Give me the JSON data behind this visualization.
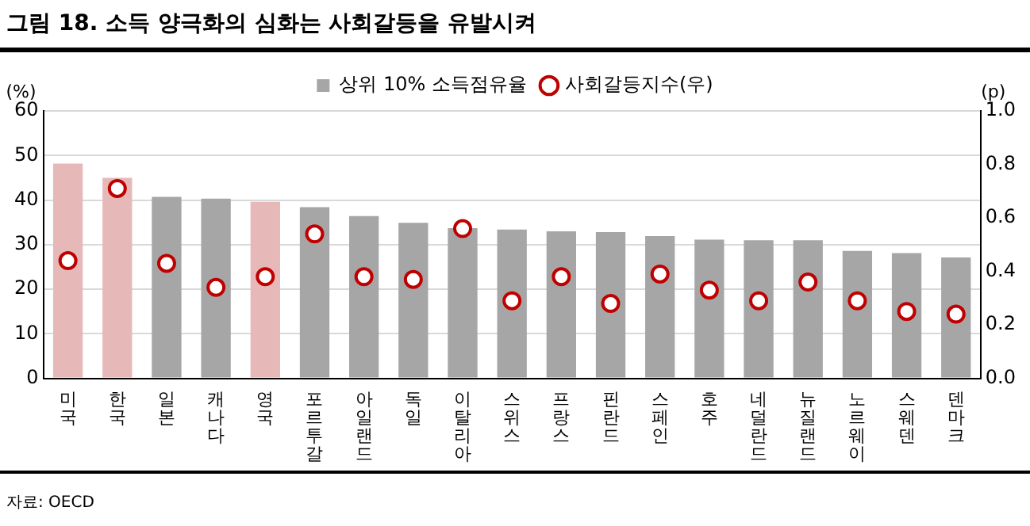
{
  "chart_data": {
    "type": "bar",
    "title": "그림 18. 소득 양극화의 심화는 사회갈등을 유발시켜",
    "ylabel": "(%)",
    "y2label": "(p)",
    "categories": [
      "미국",
      "한국",
      "일본",
      "캐나다",
      "영국",
      "포르투갈",
      "아일랜드",
      "독일",
      "이탈리아",
      "스위스",
      "프랑스",
      "핀란드",
      "스페인",
      "호주",
      "네덜란드",
      "뉴질랜드",
      "노르웨이",
      "스웨덴",
      "덴마크"
    ],
    "series": [
      {
        "name": "상위 10% 소득점유율",
        "color": "#a6a6a6",
        "colors": [
          "#e6b9b8",
          "#e6b9b8",
          "#a6a6a6",
          "#a6a6a6",
          "#e6b9b8",
          "#a6a6a6",
          "#a6a6a6",
          "#a6a6a6",
          "#a6a6a6",
          "#a6a6a6",
          "#a6a6a6",
          "#a6a6a6",
          "#a6a6a6",
          "#a6a6a6",
          "#a6a6a6",
          "#a6a6a6",
          "#a6a6a6",
          "#a6a6a6",
          "#a6a6a6"
        ],
        "values": [
          48.2,
          45.0,
          40.7,
          40.3,
          39.6,
          38.4,
          36.4,
          34.9,
          33.7,
          33.4,
          33.0,
          32.8,
          31.9,
          31.1,
          31.0,
          31.0,
          28.6,
          28.1,
          27.1
        ]
      },
      {
        "name": "사회갈등지수(우)",
        "type": "scatter",
        "axis": "y2",
        "marker": "circle",
        "color": "#c00000",
        "values": [
          0.44,
          0.71,
          0.43,
          0.34,
          0.38,
          0.54,
          0.38,
          0.37,
          0.56,
          0.29,
          0.38,
          0.28,
          0.39,
          0.33,
          0.29,
          0.36,
          0.29,
          0.25,
          0.24
        ]
      }
    ],
    "ylim": [
      0,
      60
    ],
    "yticks": [
      0,
      10,
      20,
      30,
      40,
      50,
      60
    ],
    "y2lim": [
      0,
      1.0
    ],
    "y2ticks": [
      {
        "value": 0,
        "label": "0.0"
      },
      {
        "value": 0.2,
        "label": "0.2"
      },
      {
        "value": 0.4,
        "label": "0.4"
      },
      {
        "value": 0.6,
        "label": "0.6"
      },
      {
        "value": 0.8,
        "label": "0.8"
      },
      {
        "value": 1.0,
        "label": "1.0"
      }
    ],
    "grid": "y",
    "legend": "top",
    "annotations": [
      "자료: OECD"
    ]
  }
}
